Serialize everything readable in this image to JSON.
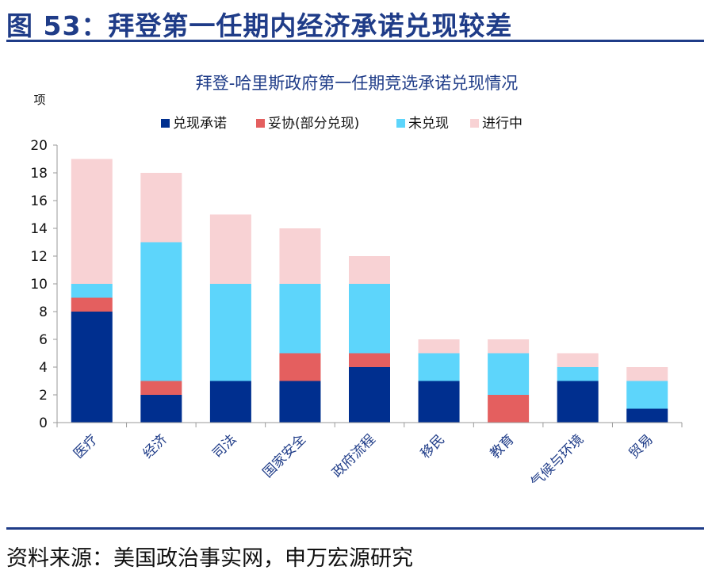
{
  "figure": {
    "title": "图 53：拜登第一任期内经济承诺兑现较差",
    "source": "资料来源：美国政治事实网，申万宏源研究"
  },
  "colors": {
    "accent": "#1f3c88",
    "fulfilled": "#002f8f",
    "compromise": "#e45f5f",
    "unfulfilled": "#5dd5fb",
    "in_progress": "#f8d2d4"
  },
  "chart_data": {
    "type": "bar",
    "stacked": true,
    "title": "拜登-哈里斯政府第一任期竞选承诺兑现情况",
    "ylabel": "项",
    "xlabel": "",
    "ylim": [
      0,
      20
    ],
    "yticks": [
      0,
      2,
      4,
      6,
      8,
      10,
      12,
      14,
      16,
      18,
      20
    ],
    "grid": false,
    "legend_position": "top",
    "categories": [
      "医疗",
      "经济",
      "司法",
      "国家安全",
      "政府流程",
      "移民",
      "教育",
      "气候与环境",
      "贸易"
    ],
    "series": [
      {
        "name": "兑现承诺",
        "color": "#002f8f",
        "values": [
          8,
          2,
          3,
          3,
          4,
          3,
          0,
          3,
          1
        ]
      },
      {
        "name": "妥协(部分兑现)",
        "color": "#e45f5f",
        "values": [
          1,
          1,
          0,
          2,
          1,
          0,
          2,
          0,
          0
        ]
      },
      {
        "name": "未兑现",
        "color": "#5dd5fb",
        "values": [
          1,
          10,
          7,
          5,
          5,
          2,
          3,
          1,
          2
        ]
      },
      {
        "name": "进行中",
        "color": "#f8d2d4",
        "values": [
          9,
          5,
          5,
          4,
          2,
          1,
          1,
          1,
          1
        ]
      }
    ]
  }
}
